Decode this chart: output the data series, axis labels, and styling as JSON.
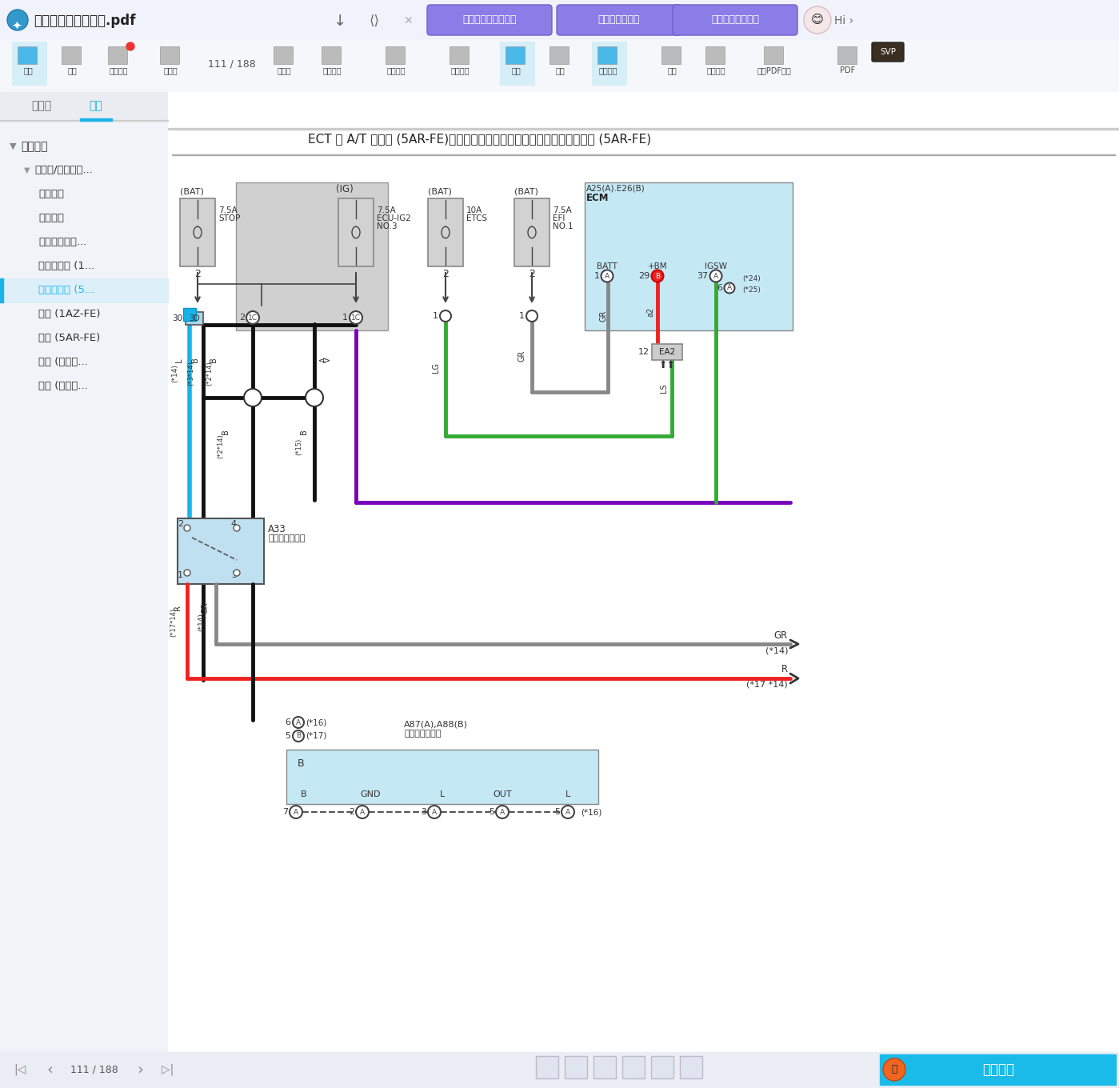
{
  "title_bar_bg": "#f2f4fb",
  "app_title": "发动机混合动力系统.pdf",
  "action_buttons": [
    "帮我写个短视频脚本",
    "截图后提取文字",
    "帮我清理网盘文件"
  ],
  "sidebar_items": [
    {
      "text": "系统电路",
      "level": 0,
      "color": "#333333"
    },
    {
      "text": "发动机/混合动力...",
      "level": 1,
      "color": "#333333"
    },
    {
      "text": "冷却风扇",
      "level": 2,
      "color": "#333333"
    },
    {
      "text": "巡航控制",
      "level": 2,
      "color": "#333333"
    },
    {
      "text": "动态雷达巡航...",
      "level": 2,
      "color": "#333333"
    },
    {
      "text": "发动机控制 (1...",
      "level": 2,
      "color": "#333333"
    },
    {
      "text": "发动机控制 (5...",
      "level": 2,
      "color": "#1ab3e8"
    },
    {
      "text": "点火 (1AZ-FE)",
      "level": 2,
      "color": "#333333"
    },
    {
      "text": "点火 (5AR-FE)",
      "level": 2,
      "color": "#333333"
    },
    {
      "text": "起动 (带智能...",
      "level": 2,
      "color": "#333333"
    },
    {
      "text": "起动 (不带智...",
      "level": 2,
      "color": "#333333"
    }
  ],
  "diagram_title": "ECT 和 A/T 指示灯 (5AR-FE)，巡航控制，动态雷达巡航控制，发动机控制 (5AR-FE)"
}
